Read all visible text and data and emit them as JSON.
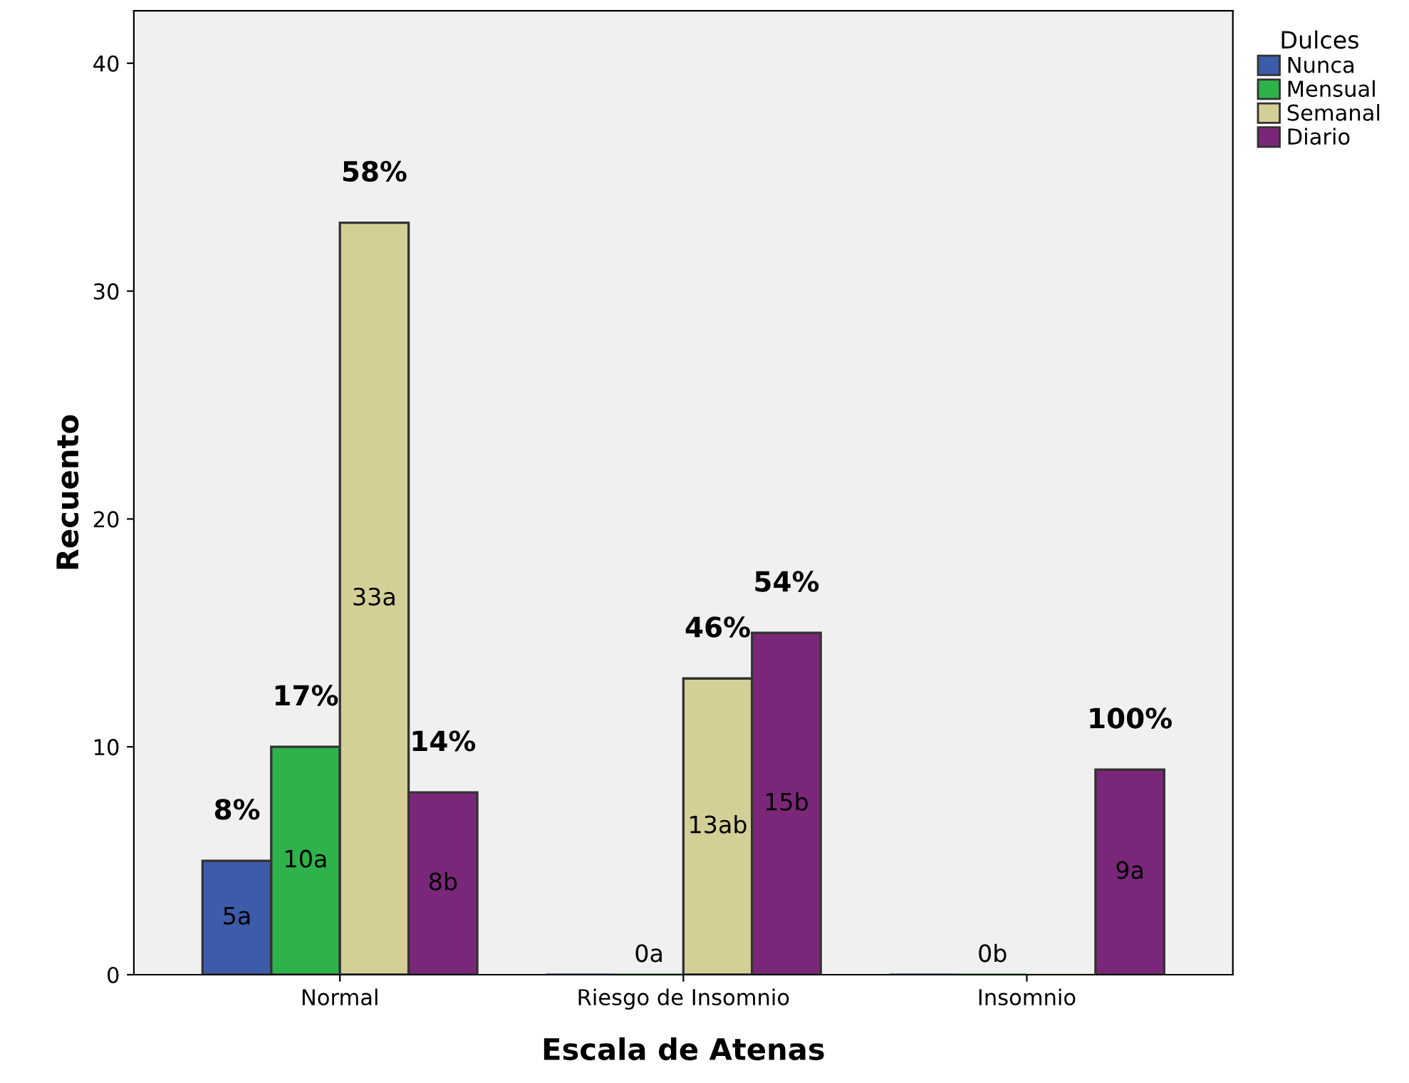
{
  "chart_data": {
    "type": "bar",
    "xlabel": "Escala de Atenas",
    "ylabel": "Recuento",
    "legend_title": "Dulces",
    "categories": [
      "Normal",
      "Riesgo de Insomnio",
      "Insomnio"
    ],
    "series": [
      {
        "name": "Nunca",
        "color": "#3c5ba8",
        "values": [
          5,
          0,
          0
        ],
        "value_labels": [
          "5a",
          null,
          null
        ]
      },
      {
        "name": "Mensual",
        "color": "#2db34a",
        "values": [
          10,
          0,
          0
        ],
        "value_labels": [
          "10a",
          "0a",
          "0b"
        ]
      },
      {
        "name": "Semanal",
        "color": "#d4cf96",
        "values": [
          33,
          13,
          0
        ],
        "value_labels": [
          "33a",
          "13ab",
          null
        ]
      },
      {
        "name": "Diario",
        "color": "#7b2779",
        "values": [
          8,
          15,
          9
        ],
        "value_labels": [
          "8b",
          "15b",
          "9a"
        ]
      }
    ],
    "annotations": [
      "8%",
      "17%",
      "58%",
      "14%",
      "46%",
      "54%",
      "100%"
    ],
    "ylim": [
      0,
      42.3
    ],
    "yticks": [
      0,
      10,
      20,
      30,
      40
    ],
    "grid": false,
    "legend": "right"
  }
}
